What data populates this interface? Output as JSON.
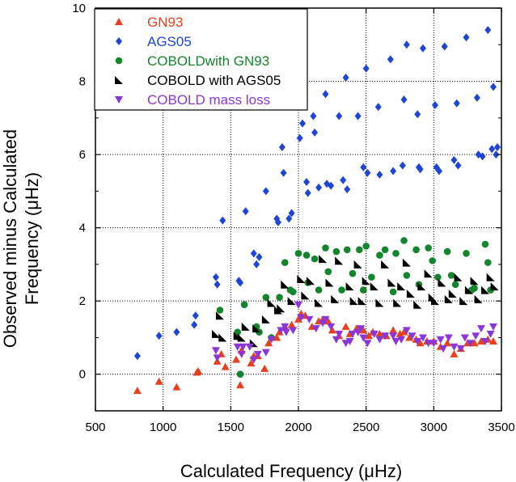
{
  "chart_data": {
    "type": "scatter",
    "xlabel": "Calculated Frequency (μHz)",
    "ylabel_lines": [
      "Observed minus Calculated",
      "Frequency (μHz)"
    ],
    "xlim": [
      500,
      3500
    ],
    "ylim": [
      -1,
      10
    ],
    "xticks": [
      500,
      1000,
      1500,
      2000,
      2500,
      3000,
      3500
    ],
    "yticks": [
      0,
      2,
      4,
      6,
      8,
      10
    ],
    "grid": "dotted",
    "legend_position": "top-left",
    "series": [
      {
        "name": "GN93",
        "marker": "triangle-up",
        "color": "#e8401c",
        "points": [
          [
            810,
            -0.45
          ],
          [
            970,
            -0.2
          ],
          [
            1100,
            -0.35
          ],
          [
            1250,
            0.05
          ],
          [
            1260,
            0.08
          ],
          [
            1400,
            0.35
          ],
          [
            1430,
            0.55
          ],
          [
            1460,
            0.2
          ],
          [
            1540,
            0.4
          ],
          [
            1570,
            -0.3
          ],
          [
            1580,
            0.65
          ],
          [
            1650,
            0.3
          ],
          [
            1670,
            0.5
          ],
          [
            1700,
            0.5
          ],
          [
            1750,
            0.15
          ],
          [
            1780,
            0.85
          ],
          [
            1840,
            1.0
          ],
          [
            1860,
            1.15
          ],
          [
            1900,
            1.3
          ],
          [
            1950,
            1.35
          ],
          [
            2000,
            1.5
          ],
          [
            2020,
            1.65
          ],
          [
            2050,
            1.6
          ],
          [
            2100,
            1.3
          ],
          [
            2150,
            1.45
          ],
          [
            2180,
            1.5
          ],
          [
            2220,
            1.45
          ],
          [
            2250,
            1.2
          ],
          [
            2300,
            1.05
          ],
          [
            2350,
            1.3
          ],
          [
            2380,
            1.1
          ],
          [
            2430,
            1.25
          ],
          [
            2480,
            1.2
          ],
          [
            2520,
            1.05
          ],
          [
            2550,
            1.15
          ],
          [
            2600,
            1.1
          ],
          [
            2650,
            1.05
          ],
          [
            2700,
            1.2
          ],
          [
            2750,
            1.1
          ],
          [
            2780,
            1.15
          ],
          [
            2820,
            1.0
          ],
          [
            2870,
            0.95
          ],
          [
            2900,
            0.85
          ],
          [
            2950,
            0.9
          ],
          [
            3000,
            0.9
          ],
          [
            3050,
            0.75
          ],
          [
            3100,
            0.85
          ],
          [
            3150,
            0.55
          ],
          [
            3200,
            0.7
          ],
          [
            3250,
            0.85
          ],
          [
            3300,
            0.85
          ],
          [
            3350,
            0.9
          ],
          [
            3400,
            0.95
          ],
          [
            3440,
            0.9
          ]
        ]
      },
      {
        "name": "AGS05",
        "marker": "diamond",
        "color": "#1f45d6",
        "points": [
          [
            810,
            0.5
          ],
          [
            970,
            1.05
          ],
          [
            1100,
            1.15
          ],
          [
            1230,
            1.35
          ],
          [
            1240,
            1.6
          ],
          [
            1390,
            2.65
          ],
          [
            1400,
            2.45
          ],
          [
            1440,
            4.2
          ],
          [
            1560,
            2.55
          ],
          [
            1570,
            2.5
          ],
          [
            1610,
            4.45
          ],
          [
            1670,
            3.3
          ],
          [
            1690,
            3.0
          ],
          [
            1710,
            3.2
          ],
          [
            1760,
            5.0
          ],
          [
            1840,
            4.25
          ],
          [
            1850,
            4.15
          ],
          [
            1880,
            6.2
          ],
          [
            1890,
            5.5
          ],
          [
            1930,
            4.25
          ],
          [
            1950,
            4.4
          ],
          [
            2010,
            6.45
          ],
          [
            2030,
            6.85
          ],
          [
            2060,
            5.25
          ],
          [
            2070,
            4.95
          ],
          [
            2110,
            7.05
          ],
          [
            2120,
            6.6
          ],
          [
            2150,
            5.1
          ],
          [
            2200,
            7.65
          ],
          [
            2210,
            5.2
          ],
          [
            2240,
            5.15
          ],
          [
            2300,
            7.05
          ],
          [
            2330,
            5.3
          ],
          [
            2350,
            8.1
          ],
          [
            2360,
            5.05
          ],
          [
            2440,
            7.05
          ],
          [
            2480,
            5.65
          ],
          [
            2500,
            8.35
          ],
          [
            2510,
            5.5
          ],
          [
            2590,
            7.3
          ],
          [
            2600,
            5.45
          ],
          [
            2680,
            8.6
          ],
          [
            2700,
            5.55
          ],
          [
            2770,
            5.7
          ],
          [
            2780,
            7.5
          ],
          [
            2800,
            9.0
          ],
          [
            2880,
            7.1
          ],
          [
            2890,
            5.65
          ],
          [
            2900,
            5.6
          ],
          [
            2920,
            8.9
          ],
          [
            3010,
            7.35
          ],
          [
            3020,
            5.65
          ],
          [
            3040,
            5.55
          ],
          [
            3080,
            8.95
          ],
          [
            3150,
            5.85
          ],
          [
            3170,
            7.4
          ],
          [
            3180,
            5.7
          ],
          [
            3240,
            9.2
          ],
          [
            3320,
            7.55
          ],
          [
            3330,
            6.0
          ],
          [
            3360,
            5.95
          ],
          [
            3400,
            9.4
          ],
          [
            3430,
            6.15
          ],
          [
            3440,
            7.85
          ],
          [
            3460,
            6.0
          ],
          [
            3470,
            6.2
          ]
        ]
      },
      {
        "name": "COBOLDwith GN93",
        "marker": "circle",
        "color": "#13852c",
        "points": [
          [
            1420,
            1.75
          ],
          [
            1550,
            1.15
          ],
          [
            1570,
            0.0
          ],
          [
            1600,
            1.9
          ],
          [
            1690,
            1.3
          ],
          [
            1710,
            1.15
          ],
          [
            1760,
            2.1
          ],
          [
            1800,
            1.0
          ],
          [
            1860,
            2.1
          ],
          [
            1900,
            3.05
          ],
          [
            1940,
            2.3
          ],
          [
            1960,
            2.25
          ],
          [
            2000,
            3.3
          ],
          [
            2060,
            3.25
          ],
          [
            2070,
            2.5
          ],
          [
            2120,
            3.15
          ],
          [
            2150,
            2.3
          ],
          [
            2200,
            3.45
          ],
          [
            2220,
            2.8
          ],
          [
            2280,
            3.35
          ],
          [
            2320,
            2.3
          ],
          [
            2360,
            3.4
          ],
          [
            2400,
            2.75
          ],
          [
            2450,
            3.4
          ],
          [
            2480,
            2.3
          ],
          [
            2500,
            3.5
          ],
          [
            2540,
            2.65
          ],
          [
            2600,
            3.25
          ],
          [
            2640,
            3.4
          ],
          [
            2700,
            2.25
          ],
          [
            2720,
            3.3
          ],
          [
            2780,
            3.65
          ],
          [
            2800,
            2.7
          ],
          [
            2870,
            3.4
          ],
          [
            2890,
            2.45
          ],
          [
            2960,
            3.45
          ],
          [
            2990,
            3.1
          ],
          [
            3030,
            2.65
          ],
          [
            3100,
            3.35
          ],
          [
            3130,
            2.7
          ],
          [
            3160,
            2.45
          ],
          [
            3240,
            3.3
          ],
          [
            3280,
            2.3
          ],
          [
            3300,
            2.35
          ],
          [
            3380,
            3.55
          ],
          [
            3400,
            3.05
          ],
          [
            3420,
            2.3
          ]
        ]
      },
      {
        "name": "COBOLD with AGS05",
        "marker": "half-square",
        "color": "#000000",
        "points": [
          [
            1390,
            1.1
          ],
          [
            1420,
            1.6
          ],
          [
            1440,
            1.0
          ],
          [
            1550,
            1.05
          ],
          [
            1580,
            1.0
          ],
          [
            1610,
            1.3
          ],
          [
            1670,
            0.85
          ],
          [
            1690,
            1.25
          ],
          [
            1760,
            1.5
          ],
          [
            1800,
            1.95
          ],
          [
            1850,
            1.75
          ],
          [
            1870,
            1.8
          ],
          [
            1900,
            2.45
          ],
          [
            1950,
            2.0
          ],
          [
            2020,
            2.6
          ],
          [
            2050,
            2.15
          ],
          [
            2090,
            2.55
          ],
          [
            2150,
            1.95
          ],
          [
            2180,
            3.15
          ],
          [
            2230,
            2.5
          ],
          [
            2270,
            2.05
          ],
          [
            2300,
            3.1
          ],
          [
            2380,
            2.4
          ],
          [
            2410,
            2.0
          ],
          [
            2440,
            3.0
          ],
          [
            2470,
            2.0
          ],
          [
            2500,
            2.55
          ],
          [
            2560,
            2.4
          ],
          [
            2600,
            1.95
          ],
          [
            2640,
            3.0
          ],
          [
            2690,
            2.5
          ],
          [
            2730,
            1.95
          ],
          [
            2760,
            2.4
          ],
          [
            2800,
            3.05
          ],
          [
            2830,
            2.2
          ],
          [
            2880,
            1.9
          ],
          [
            2910,
            2.4
          ],
          [
            2960,
            2.75
          ],
          [
            2990,
            2.1
          ],
          [
            3010,
            2.0
          ],
          [
            3060,
            2.5
          ],
          [
            3110,
            2.05
          ],
          [
            3140,
            2.2
          ],
          [
            3180,
            2.65
          ],
          [
            3220,
            2.0
          ],
          [
            3260,
            2.3
          ],
          [
            3300,
            2.55
          ],
          [
            3330,
            2.05
          ],
          [
            3380,
            2.3
          ],
          [
            3420,
            2.65
          ],
          [
            3450,
            2.4
          ]
        ]
      },
      {
        "name": "COBOLD mass loss",
        "marker": "triangle-down",
        "color": "#8a36d9",
        "points": [
          [
            1390,
            0.65
          ],
          [
            1400,
            0.45
          ],
          [
            1550,
            0.75
          ],
          [
            1580,
            0.55
          ],
          [
            1590,
            0.75
          ],
          [
            1640,
            0.75
          ],
          [
            1670,
            0.4
          ],
          [
            1700,
            0.55
          ],
          [
            1760,
            0.6
          ],
          [
            1800,
            0.95
          ],
          [
            1870,
            1.2
          ],
          [
            1900,
            1.3
          ],
          [
            1910,
            1.15
          ],
          [
            1960,
            1.2
          ],
          [
            2000,
            1.9
          ],
          [
            2020,
            1.55
          ],
          [
            2080,
            1.5
          ],
          [
            2130,
            1.25
          ],
          [
            2180,
            1.4
          ],
          [
            2200,
            1.5
          ],
          [
            2240,
            1.3
          ],
          [
            2280,
            0.95
          ],
          [
            2300,
            1.1
          ],
          [
            2350,
            0.85
          ],
          [
            2380,
            0.9
          ],
          [
            2400,
            1.1
          ],
          [
            2440,
            1.15
          ],
          [
            2460,
            1.25
          ],
          [
            2480,
            1.0
          ],
          [
            2510,
            0.85
          ],
          [
            2560,
            1.1
          ],
          [
            2600,
            0.95
          ],
          [
            2640,
            1.05
          ],
          [
            2700,
            1.05
          ],
          [
            2720,
            0.9
          ],
          [
            2760,
            0.95
          ],
          [
            2800,
            1.2
          ],
          [
            2840,
            1.05
          ],
          [
            2880,
            0.9
          ],
          [
            2920,
            1.0
          ],
          [
            2960,
            0.85
          ],
          [
            3000,
            0.85
          ],
          [
            3050,
            0.95
          ],
          [
            3070,
            0.7
          ],
          [
            3110,
            1.0
          ],
          [
            3150,
            0.75
          ],
          [
            3200,
            0.7
          ],
          [
            3230,
            1.0
          ],
          [
            3270,
            0.85
          ],
          [
            3310,
            1.05
          ],
          [
            3350,
            1.25
          ],
          [
            3380,
            0.9
          ],
          [
            3420,
            1.1
          ],
          [
            3440,
            1.3
          ]
        ]
      }
    ]
  }
}
